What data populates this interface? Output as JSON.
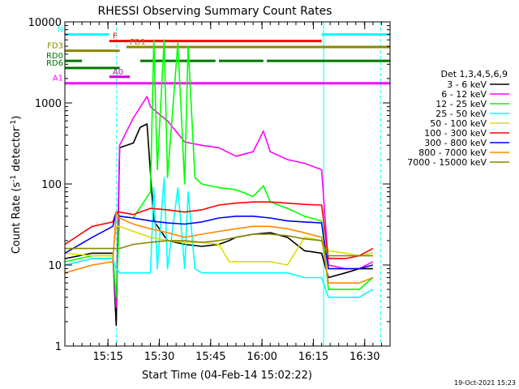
{
  "chart_data": {
    "type": "line",
    "title": "RHESSI Observing Summary Count Rates",
    "xlabel": "Start Time (04-Feb-14 15:02:22)",
    "ylabel_main": "Count Rate (s",
    "ylabel_sup1": "-1",
    "ylabel_mid": " detector",
    "ylabel_sup2": "-1",
    "ylabel_end": ")",
    "yscale": "log",
    "ylim": [
      1,
      10000
    ],
    "xlim_minutes": [
      0,
      95
    ],
    "x_unit": "minutes after 15:02:22",
    "x_ticks": [
      {
        "label": "15:15",
        "at": 12.6
      },
      {
        "label": "15:30",
        "at": 27.6
      },
      {
        "label": "15:45",
        "at": 42.6
      },
      {
        "label": "16:00",
        "at": 57.6
      },
      {
        "label": "16:15",
        "at": 72.6
      },
      {
        "label": "16:30",
        "at": 87.6
      }
    ],
    "y_ticks": [
      {
        "label": "1",
        "value": 1
      },
      {
        "label": "10",
        "value": 10
      },
      {
        "label": "100",
        "value": 100
      },
      {
        "label": "1000",
        "value": 1000
      },
      {
        "label": "10000",
        "value": 10000
      }
    ],
    "legend_title": "Det 1,3,4,5,6,9",
    "legend_position": "right",
    "timestamp": "19-Oct-2021 15:23",
    "series": [
      {
        "name": "3 - 6 keV",
        "color": "#000000",
        "points": [
          [
            0,
            12
          ],
          [
            8,
            14
          ],
          [
            14,
            14
          ],
          [
            15,
            1.8
          ],
          [
            16,
            280
          ],
          [
            20,
            320
          ],
          [
            22,
            500
          ],
          [
            24,
            550
          ],
          [
            26,
            35
          ],
          [
            30,
            20
          ],
          [
            35,
            18
          ],
          [
            40,
            17
          ],
          [
            45,
            18
          ],
          [
            48,
            20
          ],
          [
            50,
            22
          ],
          [
            55,
            24
          ],
          [
            60,
            25
          ],
          [
            65,
            22
          ],
          [
            70,
            15
          ],
          [
            75,
            14
          ],
          [
            77,
            7
          ],
          [
            82,
            8
          ],
          [
            86,
            9
          ],
          [
            90,
            9
          ]
        ]
      },
      {
        "name": "6 - 12 keV",
        "color": "#ff00ff",
        "points": [
          [
            0,
            10
          ],
          [
            8,
            12
          ],
          [
            14,
            12
          ],
          [
            15,
            3
          ],
          [
            16,
            300
          ],
          [
            20,
            650
          ],
          [
            24,
            1200
          ],
          [
            25,
            900
          ],
          [
            28,
            700
          ],
          [
            30,
            600
          ],
          [
            35,
            330
          ],
          [
            40,
            300
          ],
          [
            45,
            280
          ],
          [
            50,
            220
          ],
          [
            55,
            250
          ],
          [
            58,
            450
          ],
          [
            60,
            250
          ],
          [
            65,
            200
          ],
          [
            70,
            180
          ],
          [
            75,
            150
          ],
          [
            77,
            10
          ],
          [
            82,
            9
          ],
          [
            86,
            9
          ],
          [
            90,
            11
          ]
        ]
      },
      {
        "name": "12 - 25 keV",
        "color": "#00ff00",
        "points": [
          [
            0,
            11
          ],
          [
            8,
            13
          ],
          [
            14,
            13
          ],
          [
            15,
            4
          ],
          [
            16,
            40
          ],
          [
            20,
            38
          ],
          [
            25,
            80
          ],
          [
            26,
            6000
          ],
          [
            27,
            150
          ],
          [
            29,
            6000
          ],
          [
            30,
            120
          ],
          [
            33,
            5500
          ],
          [
            35,
            100
          ],
          [
            36,
            5000
          ],
          [
            38,
            120
          ],
          [
            40,
            100
          ],
          [
            45,
            90
          ],
          [
            50,
            85
          ],
          [
            55,
            70
          ],
          [
            58,
            95
          ],
          [
            60,
            60
          ],
          [
            65,
            50
          ],
          [
            70,
            40
          ],
          [
            75,
            35
          ],
          [
            77,
            5
          ],
          [
            82,
            5
          ],
          [
            86,
            5
          ],
          [
            90,
            7
          ]
        ]
      },
      {
        "name": "25 - 50 keV",
        "color": "#00ffff",
        "points": [
          [
            0,
            10
          ],
          [
            8,
            12
          ],
          [
            14,
            12
          ],
          [
            15,
            9
          ],
          [
            16,
            8
          ],
          [
            20,
            8
          ],
          [
            25,
            8
          ],
          [
            26,
            90
          ],
          [
            27,
            9
          ],
          [
            29,
            120
          ],
          [
            30,
            9
          ],
          [
            33,
            90
          ],
          [
            35,
            9
          ],
          [
            36,
            80
          ],
          [
            38,
            9
          ],
          [
            40,
            8
          ],
          [
            45,
            8
          ],
          [
            50,
            8
          ],
          [
            55,
            8
          ],
          [
            58,
            8
          ],
          [
            60,
            8
          ],
          [
            65,
            8
          ],
          [
            70,
            7
          ],
          [
            75,
            7
          ],
          [
            77,
            4
          ],
          [
            82,
            4
          ],
          [
            86,
            4
          ],
          [
            90,
            5
          ]
        ]
      },
      {
        "name": "50 - 100 keV",
        "color": "#dddd00",
        "points": [
          [
            0,
            14
          ],
          [
            8,
            13
          ],
          [
            14,
            13
          ],
          [
            15,
            30
          ],
          [
            16,
            30
          ],
          [
            20,
            26
          ],
          [
            25,
            22
          ],
          [
            30,
            20
          ],
          [
            35,
            19
          ],
          [
            40,
            19
          ],
          [
            45,
            18
          ],
          [
            48,
            11
          ],
          [
            55,
            11
          ],
          [
            60,
            11
          ],
          [
            65,
            10
          ],
          [
            70,
            22
          ],
          [
            75,
            20
          ],
          [
            77,
            15
          ],
          [
            82,
            14
          ],
          [
            86,
            13
          ],
          [
            90,
            14
          ]
        ]
      },
      {
        "name": "100 - 300 keV",
        "color": "#ff0000",
        "points": [
          [
            0,
            18
          ],
          [
            8,
            30
          ],
          [
            14,
            34
          ],
          [
            15,
            45
          ],
          [
            16,
            45
          ],
          [
            20,
            42
          ],
          [
            25,
            50
          ],
          [
            30,
            48
          ],
          [
            35,
            45
          ],
          [
            40,
            48
          ],
          [
            45,
            55
          ],
          [
            50,
            58
          ],
          [
            55,
            60
          ],
          [
            60,
            60
          ],
          [
            65,
            58
          ],
          [
            70,
            56
          ],
          [
            75,
            55
          ],
          [
            77,
            12
          ],
          [
            82,
            12
          ],
          [
            86,
            13
          ],
          [
            90,
            16
          ]
        ]
      },
      {
        "name": "300 - 800 keV",
        "color": "#0000ff",
        "points": [
          [
            0,
            14
          ],
          [
            8,
            22
          ],
          [
            14,
            30
          ],
          [
            15,
            45
          ],
          [
            16,
            40
          ],
          [
            20,
            38
          ],
          [
            25,
            35
          ],
          [
            30,
            33
          ],
          [
            35,
            32
          ],
          [
            40,
            34
          ],
          [
            45,
            38
          ],
          [
            50,
            40
          ],
          [
            55,
            40
          ],
          [
            60,
            38
          ],
          [
            65,
            35
          ],
          [
            70,
            34
          ],
          [
            75,
            33
          ],
          [
            77,
            9
          ],
          [
            82,
            9
          ],
          [
            86,
            9
          ],
          [
            90,
            10
          ]
        ]
      },
      {
        "name": "800 - 7000 keV",
        "color": "#ff8800",
        "points": [
          [
            0,
            8
          ],
          [
            8,
            10
          ],
          [
            14,
            11
          ],
          [
            15,
            45
          ],
          [
            16,
            38
          ],
          [
            20,
            32
          ],
          [
            25,
            28
          ],
          [
            30,
            25
          ],
          [
            35,
            22
          ],
          [
            40,
            24
          ],
          [
            45,
            26
          ],
          [
            50,
            28
          ],
          [
            55,
            30
          ],
          [
            60,
            30
          ],
          [
            65,
            28
          ],
          [
            70,
            25
          ],
          [
            75,
            22
          ],
          [
            77,
            6
          ],
          [
            82,
            6
          ],
          [
            86,
            6
          ],
          [
            90,
            7
          ]
        ]
      },
      {
        "name": "7000 - 15000 keV",
        "color": "#888800",
        "points": [
          [
            0,
            16
          ],
          [
            8,
            16
          ],
          [
            14,
            16
          ],
          [
            15,
            16
          ],
          [
            16,
            16
          ],
          [
            20,
            18
          ],
          [
            25,
            19
          ],
          [
            30,
            20
          ],
          [
            35,
            20
          ],
          [
            40,
            19
          ],
          [
            45,
            20
          ],
          [
            50,
            22
          ],
          [
            55,
            24
          ],
          [
            60,
            24
          ],
          [
            65,
            23
          ],
          [
            70,
            21
          ],
          [
            75,
            20
          ],
          [
            77,
            13
          ],
          [
            82,
            13
          ],
          [
            86,
            13
          ],
          [
            90,
            13
          ]
        ]
      }
    ],
    "state_bars": [
      {
        "label": "N",
        "color": "#00ffff",
        "value": 7000,
        "segments": [
          [
            0,
            13
          ],
          [
            75,
            95
          ]
        ]
      },
      {
        "label": "F",
        "color": "#ff0000",
        "value": 5800,
        "segments": [
          [
            13,
            75
          ]
        ]
      },
      {
        "label": "FD1",
        "color": "#888800",
        "value": 4900,
        "segments": [
          [
            18,
            95
          ]
        ]
      },
      {
        "label": "FD3",
        "color": "#888800",
        "value": 4400,
        "segments": [
          [
            0,
            16
          ]
        ]
      },
      {
        "label": "RD0",
        "color": "#007700",
        "value": 3300,
        "segments": [
          [
            0,
            5
          ],
          [
            22,
            44
          ],
          [
            45,
            58
          ],
          [
            59,
            95
          ]
        ]
      },
      {
        "label": "RD6",
        "color": "#007700",
        "value": 2700,
        "segments": [
          [
            0,
            16
          ]
        ]
      },
      {
        "label": "A0",
        "color": "#cc00cc",
        "value": 2100,
        "segments": [
          [
            13,
            19
          ]
        ]
      },
      {
        "label": "A1",
        "color": "#ff00ff",
        "value": 1750,
        "segments": [
          [
            0,
            95
          ]
        ]
      }
    ],
    "saa_lines_minutes": [
      15.1,
      75.6,
      92.2
    ]
  }
}
